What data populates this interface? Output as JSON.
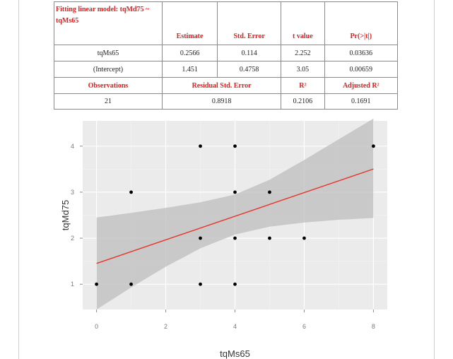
{
  "table": {
    "title": "Fitting linear model: tqMd75 ~ tqMs65",
    "headers": [
      "Estimate",
      "Std. Error",
      "t value",
      "Pr(>|t|)"
    ],
    "rows": [
      {
        "term": "tqMs65",
        "estimate": "0.2566",
        "std_error": "0.114",
        "t_value": "2.252",
        "p_value": "0.03636"
      },
      {
        "term": "(Intercept)",
        "estimate": "1.451",
        "std_error": "0.4758",
        "t_value": "3.05",
        "p_value": "0.00659"
      }
    ],
    "summary_headers": {
      "observations": "Observations",
      "residual_se": "Residual Std. Error",
      "r2": "R²",
      "adj_r2": "Adjusted R²"
    },
    "summary_values": {
      "observations": "21",
      "residual_se": "0.8918",
      "r2": "0.2106",
      "adj_r2": "0.1691"
    }
  },
  "colors": {
    "title_red": "#e02020",
    "panel": "#ebebeb",
    "grid": "#ffffff",
    "line": "#e8352b",
    "band": "#bdbdbd",
    "points": "#000000"
  },
  "chart_data": {
    "type": "scatter",
    "xlabel": "tqMs65",
    "ylabel": "tqMd75",
    "xlim": [
      -0.4,
      8.4
    ],
    "ylim": [
      0.45,
      4.55
    ],
    "xticks": [
      0,
      2,
      4,
      6,
      8
    ],
    "yticks": [
      1,
      2,
      3,
      4
    ],
    "grid": true,
    "points": [
      {
        "x": 0,
        "y": 1
      },
      {
        "x": 1,
        "y": 1
      },
      {
        "x": 1,
        "y": 3
      },
      {
        "x": 3,
        "y": 1
      },
      {
        "x": 3,
        "y": 2
      },
      {
        "x": 3,
        "y": 4
      },
      {
        "x": 4,
        "y": 1
      },
      {
        "x": 4,
        "y": 2
      },
      {
        "x": 4,
        "y": 3
      },
      {
        "x": 4,
        "y": 4
      },
      {
        "x": 5,
        "y": 2
      },
      {
        "x": 5,
        "y": 3
      },
      {
        "x": 6,
        "y": 2
      },
      {
        "x": 8,
        "y": 4
      }
    ],
    "fit": {
      "intercept": 1.451,
      "slope": 0.2566,
      "x_range": [
        0,
        8
      ]
    },
    "confidence_band": [
      {
        "x": 0,
        "lower": 0.45,
        "upper": 2.45
      },
      {
        "x": 1,
        "lower": 0.93,
        "upper": 2.55
      },
      {
        "x": 2,
        "lower": 1.38,
        "upper": 2.66
      },
      {
        "x": 3,
        "lower": 1.78,
        "upper": 2.78
      },
      {
        "x": 4,
        "lower": 2.08,
        "upper": 2.95
      },
      {
        "x": 5,
        "lower": 2.25,
        "upper": 3.27
      },
      {
        "x": 6,
        "lower": 2.34,
        "upper": 3.7
      },
      {
        "x": 7,
        "lower": 2.4,
        "upper": 4.15
      },
      {
        "x": 8,
        "lower": 2.44,
        "upper": 4.6
      }
    ]
  }
}
